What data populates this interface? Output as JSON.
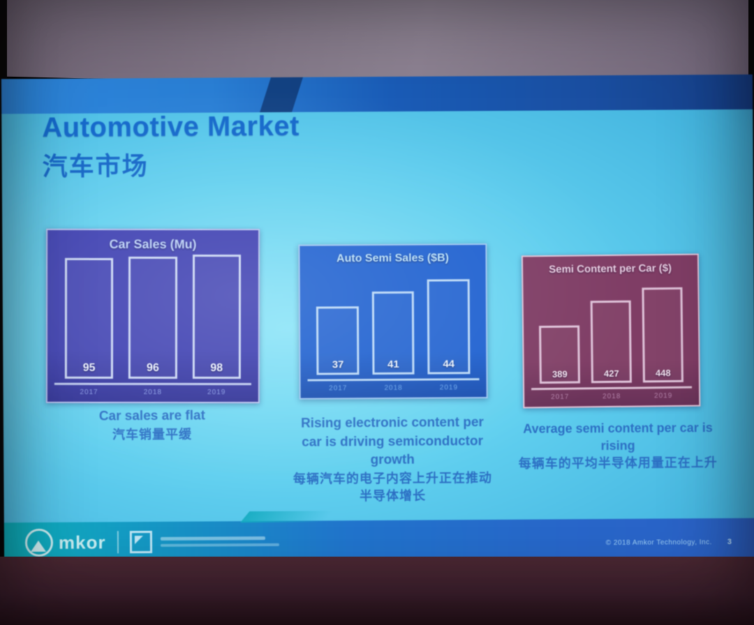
{
  "slide": {
    "title_en": "Automotive Market",
    "title_zh": "汽车市场"
  },
  "chart_data": [
    {
      "type": "bar",
      "title": "Car Sales (Mu)",
      "categories": [
        "2017",
        "2018",
        "2019"
      ],
      "values": [
        95,
        96,
        98
      ],
      "ylim": [
        0,
        100
      ],
      "grid": false,
      "legend": "none",
      "caption_en": "Car sales are flat",
      "caption_zh": "汽车销量平缓",
      "colors": {
        "panel": "#3d3fae",
        "border": "#b9c6ee",
        "bar": "#cdd9f4",
        "value": "#eef3ff",
        "year": "#8b9ce4",
        "title": "#bcd2f8",
        "axis": "#c3cff1"
      }
    },
    {
      "type": "bar",
      "title": "Auto Semi Sales ($B)",
      "categories": [
        "2017",
        "2018",
        "2019"
      ],
      "values": [
        37,
        41,
        44
      ],
      "ylim": [
        20,
        48
      ],
      "grid": false,
      "legend": "none",
      "caption_en": "Rising electronic content per car is driving semiconductor growth",
      "caption_zh": "每辆汽车的电子内容上升正在推动半导体增长",
      "colors": {
        "panel": "#2161cd",
        "border": "#9fc6f0",
        "bar": "#bcd9f6",
        "value": "#eef6ff",
        "year": "#6ca4e8",
        "title": "#b9e0fa",
        "axis": "#b5d5f4"
      }
    },
    {
      "type": "bar",
      "title": "Semi Content per Car ($)",
      "categories": [
        "2017",
        "2018",
        "2019"
      ],
      "values": [
        389,
        427,
        448
      ],
      "ylim": [
        300,
        470
      ],
      "grid": false,
      "legend": "none",
      "caption_en": "Average semi content per car is rising",
      "caption_zh": "每辆车的平均半导体用量正在上升",
      "colors": {
        "panel": "#7e3d64",
        "border": "#e2c9dc",
        "bar": "#dfc4da",
        "value": "#f2e4f0",
        "year": "#b183a8",
        "title": "#e8cfe2",
        "axis": "#dcc2d6"
      }
    }
  ],
  "footer": {
    "logo_text": "mkor",
    "copyright": "© 2018 Amkor Technology, Inc.",
    "page_number": "3"
  }
}
